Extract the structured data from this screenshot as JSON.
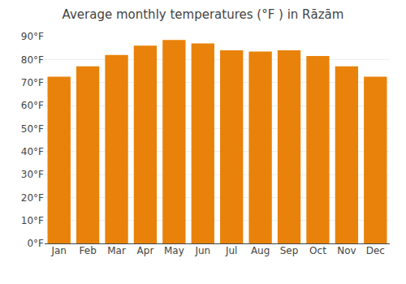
{
  "chart_data": {
    "type": "bar",
    "title": "Average monthly temperatures (°F ) in Rāzām",
    "categories": [
      "Jan",
      "Feb",
      "Mar",
      "Apr",
      "May",
      "Jun",
      "Jul",
      "Aug",
      "Sep",
      "Oct",
      "Nov",
      "Dec"
    ],
    "values": [
      72.5,
      77,
      82,
      86,
      88.5,
      87,
      84,
      83.5,
      84,
      81.5,
      77,
      72.5
    ],
    "color": "#E8820A",
    "ylim": [
      0,
      90
    ],
    "yticks": [
      {
        "value": 0,
        "label": "0°F"
      },
      {
        "value": 10,
        "label": "10°F"
      },
      {
        "value": 20,
        "label": "20°F"
      },
      {
        "value": 30,
        "label": "30°F"
      },
      {
        "value": 40,
        "label": "40°F"
      },
      {
        "value": 50,
        "label": "50°F"
      },
      {
        "value": 60,
        "label": "60°F"
      },
      {
        "value": 70,
        "label": "70°F"
      },
      {
        "value": 80,
        "label": "80°F"
      },
      {
        "value": 90,
        "label": "90°F"
      }
    ],
    "grid": true
  }
}
